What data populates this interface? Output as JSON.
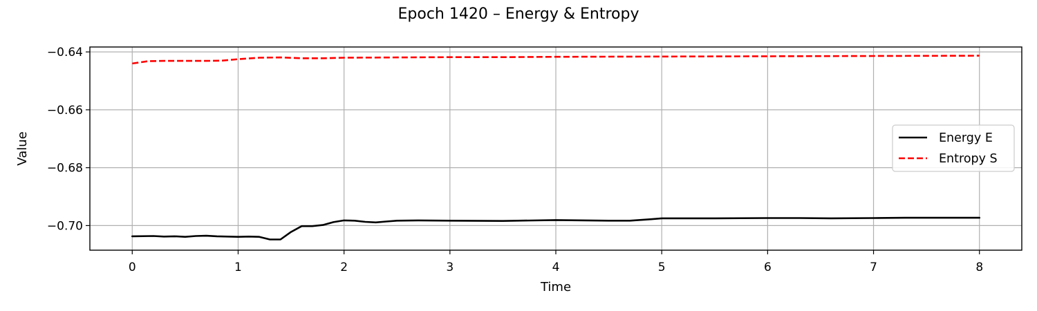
{
  "chart_data": {
    "type": "line",
    "title": "Epoch 1420 – Energy & Entropy",
    "xlabel": "Time",
    "ylabel": "Value",
    "xlim": [
      -0.4,
      8.4
    ],
    "ylim": [
      -0.7085,
      -0.6383
    ],
    "xticks": [
      0,
      1,
      2,
      3,
      4,
      5,
      6,
      7,
      8
    ],
    "xtick_labels": [
      "0",
      "1",
      "2",
      "3",
      "4",
      "5",
      "6",
      "7",
      "8"
    ],
    "yticks": [
      -0.64,
      -0.66,
      -0.68,
      -0.7
    ],
    "ytick_labels": [
      "−0.64",
      "−0.66",
      "−0.68",
      "−0.70"
    ],
    "grid": true,
    "legend": {
      "position": "center-right"
    },
    "series": [
      {
        "name": "Energy E",
        "color": "#000000",
        "dash": "solid",
        "x": [
          0,
          0.2,
          0.3,
          0.4,
          0.5,
          0.6,
          0.7,
          0.8,
          0.9,
          1.0,
          1.1,
          1.2,
          1.3,
          1.4,
          1.5,
          1.6,
          1.7,
          1.8,
          1.9,
          2.0,
          2.1,
          2.2,
          2.3,
          2.4,
          2.5,
          2.7,
          3.0,
          3.5,
          4.0,
          4.5,
          4.7,
          4.9,
          5.0,
          5.5,
          6.0,
          6.3,
          6.6,
          7.0,
          7.3,
          8.0
        ],
        "y": [
          -0.7037,
          -0.7036,
          -0.7038,
          -0.7037,
          -0.7039,
          -0.7036,
          -0.7035,
          -0.7037,
          -0.7038,
          -0.7039,
          -0.7038,
          -0.7039,
          -0.7048,
          -0.7048,
          -0.7022,
          -0.7002,
          -0.7002,
          -0.6998,
          -0.6988,
          -0.6982,
          -0.6983,
          -0.6987,
          -0.6989,
          -0.6986,
          -0.6983,
          -0.6982,
          -0.6983,
          -0.6984,
          -0.6981,
          -0.6983,
          -0.6983,
          -0.6978,
          -0.6975,
          -0.6975,
          -0.6974,
          -0.6974,
          -0.6975,
          -0.6974,
          -0.6973,
          -0.6973
        ]
      },
      {
        "name": "Entropy S",
        "color": "#ff0000",
        "dash": "dashed",
        "x": [
          0,
          0.15,
          0.3,
          0.5,
          0.7,
          0.85,
          1.0,
          1.2,
          1.4,
          1.6,
          1.8,
          2.0,
          2.5,
          3.0,
          3.5,
          4.0,
          5.0,
          6.0,
          7.0,
          8.0
        ],
        "y": [
          -0.644,
          -0.6432,
          -0.6431,
          -0.6431,
          -0.6431,
          -0.643,
          -0.6425,
          -0.642,
          -0.6419,
          -0.6422,
          -0.6422,
          -0.642,
          -0.6419,
          -0.6418,
          -0.6418,
          -0.6417,
          -0.6416,
          -0.6415,
          -0.6414,
          -0.6413
        ]
      }
    ]
  }
}
